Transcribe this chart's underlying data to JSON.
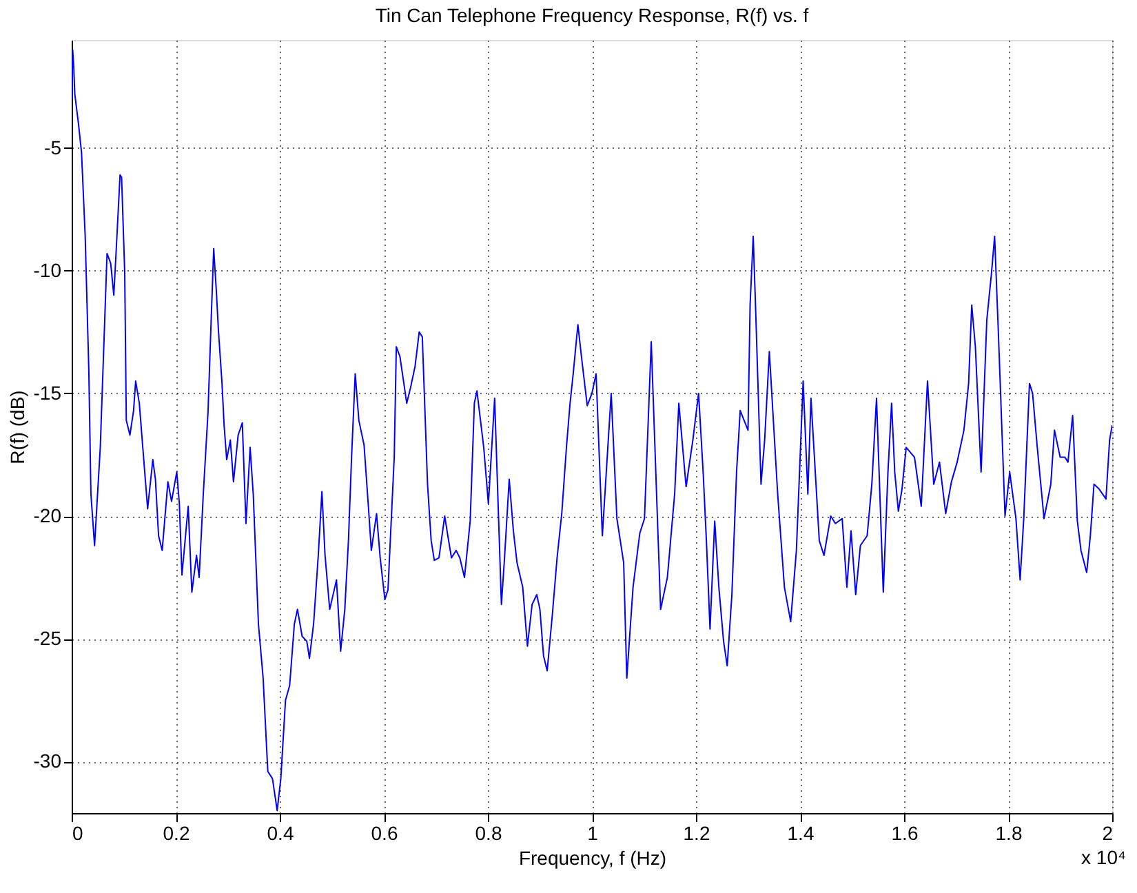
{
  "chart_data": {
    "type": "line",
    "title": "Tin Can Telephone Frequency Response, R(f) vs. f",
    "xlabel": "Frequency, f (Hz)",
    "ylabel": "R(f) (dB)",
    "annotations": [
      "x 10⁴"
    ],
    "xlim": [
      0,
      2
    ],
    "xticks": [
      0,
      0.2,
      0.4,
      0.6,
      0.8,
      1,
      1.2,
      1.4,
      1.6,
      1.8,
      2
    ],
    "ylim": [
      -32.1,
      -0.6
    ],
    "yticks": [
      -30,
      -25,
      -20,
      -15,
      -10,
      -5
    ],
    "grid": true,
    "marker": "none",
    "line_style": "solid",
    "series": [
      {
        "color": "#0000ff",
        "x": [
          0,
          0.002,
          0.004,
          0.006,
          0.013,
          0.019,
          0.026,
          0.033,
          0.037,
          0.044,
          0.055,
          0.068,
          0.075,
          0.081,
          0.086,
          0.093,
          0.096,
          0.102,
          0.105,
          0.112,
          0.119,
          0.123,
          0.13,
          0.146,
          0.156,
          0.161,
          0.167,
          0.174,
          0.185,
          0.192,
          0.202,
          0.207,
          0.212,
          0.218,
          0.224,
          0.231,
          0.24,
          0.245,
          0.253,
          0.262,
          0.267,
          0.273,
          0.278,
          0.282,
          0.289,
          0.293,
          0.298,
          0.305,
          0.311,
          0.32,
          0.328,
          0.335,
          0.343,
          0.349,
          0.359,
          0.368,
          0.377,
          0.386,
          0.395,
          0.402,
          0.411,
          0.419,
          0.428,
          0.434,
          0.443,
          0.452,
          0.457,
          0.465,
          0.474,
          0.481,
          0.487,
          0.496,
          0.509,
          0.517,
          0.525,
          0.532,
          0.538,
          0.545,
          0.552,
          0.562,
          0.57,
          0.576,
          0.586,
          0.593,
          0.602,
          0.608,
          0.62,
          0.624,
          0.631,
          0.644,
          0.651,
          0.66,
          0.668,
          0.674,
          0.679,
          0.684,
          0.691,
          0.697,
          0.706,
          0.717,
          0.723,
          0.73,
          0.739,
          0.746,
          0.755,
          0.766,
          0.774,
          0.779,
          0.792,
          0.801,
          0.813,
          0.826,
          0.832,
          0.841,
          0.849,
          0.856,
          0.867,
          0.876,
          0.885,
          0.894,
          0.9,
          0.907,
          0.914,
          0.924,
          0.933,
          0.942,
          0.951,
          0.958,
          0.964,
          0.973,
          0.982,
          0.991,
          1.0,
          1.008,
          1.02,
          1.037,
          1.048,
          1.061,
          1.067,
          1.079,
          1.092,
          1.101,
          1.114,
          1.132,
          1.145,
          1.159,
          1.167,
          1.181,
          1.194,
          1.205,
          1.214,
          1.22,
          1.227,
          1.236,
          1.244,
          1.253,
          1.26,
          1.269,
          1.278,
          1.285,
          1.3,
          1.304,
          1.31,
          1.315,
          1.325,
          1.332,
          1.341,
          1.357,
          1.37,
          1.382,
          1.393,
          1.406,
          1.415,
          1.421,
          1.437,
          1.446,
          1.459,
          1.468,
          1.481,
          1.49,
          1.498,
          1.507,
          1.516,
          1.529,
          1.538,
          1.547,
          1.56,
          1.569,
          1.576,
          1.582,
          1.589,
          1.596,
          1.604,
          1.62,
          1.633,
          1.645,
          1.657,
          1.668,
          1.68,
          1.691,
          1.702,
          1.715,
          1.724,
          1.73,
          1.737,
          1.748,
          1.759,
          1.768,
          1.774,
          1.781,
          1.794,
          1.803,
          1.815,
          1.823,
          1.83,
          1.841,
          1.847,
          1.856,
          1.869,
          1.882,
          1.889,
          1.9,
          1.909,
          1.915,
          1.924,
          1.933,
          1.94,
          1.951,
          1.958,
          1.965,
          1.975,
          1.988,
          1.995,
          2.0
        ],
        "values": [
          -3.0,
          -1.0,
          -1.7,
          -2.8,
          -4.0,
          -5.2,
          -8.6,
          -14.1,
          -19.1,
          -21.2,
          -17.2,
          -9.3,
          -9.7,
          -11.0,
          -9.0,
          -6.1,
          -6.2,
          -10.1,
          -16.1,
          -16.7,
          -15.7,
          -14.5,
          -15.4,
          -19.7,
          -17.7,
          -18.5,
          -20.8,
          -21.4,
          -18.6,
          -19.4,
          -18.2,
          -19.5,
          -22.4,
          -21.0,
          -19.6,
          -23.1,
          -21.6,
          -22.5,
          -19.1,
          -15.8,
          -12.7,
          -9.1,
          -10.8,
          -12.4,
          -14.6,
          -16.3,
          -17.7,
          -16.9,
          -18.6,
          -16.7,
          -16.2,
          -20.3,
          -17.2,
          -19.1,
          -24.4,
          -26.6,
          -30.4,
          -30.7,
          -32.0,
          -30.7,
          -27.5,
          -26.9,
          -24.4,
          -23.8,
          -24.9,
          -25.1,
          -25.8,
          -24.4,
          -21.6,
          -19.0,
          -21.6,
          -23.8,
          -22.6,
          -25.5,
          -23.8,
          -21.0,
          -17.6,
          -14.2,
          -16.1,
          -17.1,
          -19.5,
          -21.4,
          -19.9,
          -21.7,
          -23.4,
          -23.0,
          -17.6,
          -13.1,
          -13.5,
          -15.4,
          -14.8,
          -13.9,
          -12.5,
          -12.7,
          -15.7,
          -18.7,
          -21.0,
          -21.8,
          -21.7,
          -20.0,
          -20.8,
          -21.7,
          -21.4,
          -21.7,
          -22.5,
          -20.2,
          -15.4,
          -14.9,
          -17.2,
          -19.5,
          -15.2,
          -23.6,
          -21.7,
          -18.5,
          -20.6,
          -21.9,
          -22.9,
          -25.3,
          -23.6,
          -23.2,
          -23.8,
          -25.7,
          -26.3,
          -24.0,
          -21.7,
          -19.9,
          -17.2,
          -15.4,
          -14.2,
          -12.2,
          -13.9,
          -15.5,
          -15.0,
          -14.2,
          -20.8,
          -15.0,
          -20.1,
          -21.9,
          -26.6,
          -22.9,
          -20.7,
          -20.1,
          -12.9,
          -23.8,
          -22.5,
          -19.1,
          -15.4,
          -18.8,
          -16.9,
          -15.0,
          -18.3,
          -21.0,
          -24.6,
          -20.2,
          -22.9,
          -25.1,
          -26.1,
          -23.2,
          -18.2,
          -15.7,
          -16.5,
          -11.4,
          -8.6,
          -11.8,
          -18.7,
          -16.9,
          -13.3,
          -19.1,
          -22.9,
          -24.3,
          -21.4,
          -14.5,
          -19.1,
          -15.2,
          -21.0,
          -21.6,
          -20.0,
          -20.3,
          -20.1,
          -22.9,
          -20.6,
          -23.2,
          -21.2,
          -20.8,
          -18.7,
          -15.2,
          -23.1,
          -18.2,
          -15.4,
          -18.2,
          -19.8,
          -18.9,
          -17.2,
          -17.6,
          -19.6,
          -14.5,
          -18.7,
          -17.8,
          -19.9,
          -18.6,
          -17.8,
          -16.5,
          -14.6,
          -11.4,
          -13.1,
          -18.2,
          -12.0,
          -10.1,
          -8.6,
          -12.4,
          -20.0,
          -18.2,
          -20.1,
          -22.6,
          -20.1,
          -14.6,
          -15.0,
          -17.2,
          -20.1,
          -18.7,
          -16.5,
          -17.6,
          -17.6,
          -17.8,
          -15.9,
          -20.2,
          -21.4,
          -22.3,
          -20.8,
          -18.7,
          -18.9,
          -19.3,
          -16.9,
          -16.3
        ]
      }
    ]
  }
}
